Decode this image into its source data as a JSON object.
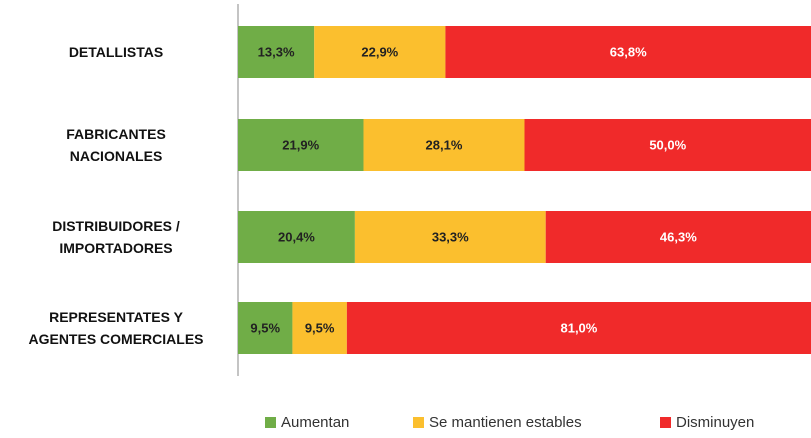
{
  "chart_data": {
    "type": "stacked_barh",
    "categories": [
      "DETALLISTAS",
      "FABRICANTES\nNACIONALES",
      "DISTRIBUIDORES /\nIMPORTADORES",
      "REPRESENTATES Y\nAGENTES COMERCIALES"
    ],
    "series": [
      {
        "name": "Aumentan",
        "color": "#70ad47",
        "values": [
          13.3,
          21.9,
          20.4,
          9.5
        ],
        "value_labels": [
          "13,3%",
          "21,9%",
          "20,4%",
          "9,5%"
        ]
      },
      {
        "name": "Se mantienen estables",
        "color": "#fbbf2e",
        "values": [
          22.9,
          28.1,
          33.3,
          9.5
        ],
        "value_labels": [
          "22,9%",
          "28,1%",
          "33,3%",
          "9,5%"
        ]
      },
      {
        "name": "Disminuyen",
        "color": "#f02a2a",
        "values": [
          63.8,
          50.0,
          46.3,
          81.0
        ],
        "value_labels": [
          "63,8%",
          "50,0%",
          "46,3%",
          "81,0%"
        ]
      }
    ],
    "xlim": [
      0,
      100
    ],
    "legend": "bottom"
  }
}
